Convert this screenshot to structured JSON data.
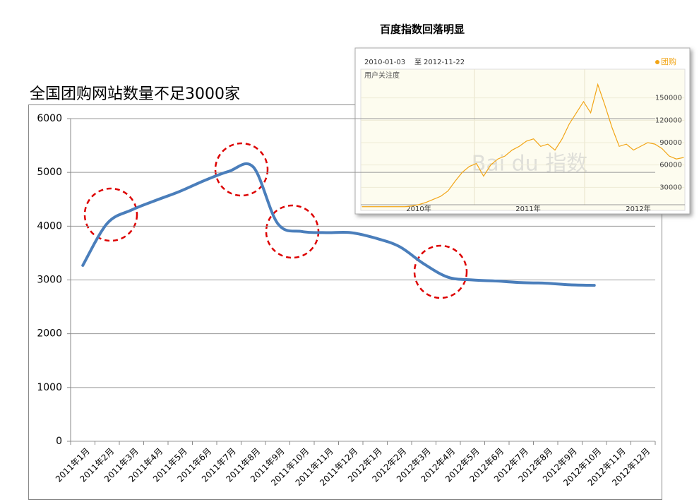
{
  "chart_data": [
    {
      "type": "line",
      "title": "全国团购网站数量不足3000家",
      "categories": [
        "2011年1月",
        "2011年2月",
        "2011年3月",
        "2011年4月",
        "2011年5月",
        "2011年6月",
        "2011年7月",
        "2011年8月",
        "2011年9月",
        "2011年10月",
        "2011年11月",
        "2011年12月",
        "2012年1月",
        "2012年2月",
        "2012年3月",
        "2012年4月",
        "2012年5月",
        "2012年6月",
        "2012年7月",
        "2012年8月",
        "2012年9月",
        "2012年10月",
        "2012年11月",
        "2012年12月"
      ],
      "series": [
        {
          "name": null,
          "color": "#4a7ebb",
          "values": [
            3270,
            4050,
            4300,
            4480,
            4650,
            4850,
            5020,
            5100,
            4050,
            3900,
            3880,
            3880,
            3780,
            3620,
            3300,
            3050,
            3000,
            2980,
            2950,
            2940,
            2910,
            2900,
            null,
            null
          ]
        }
      ],
      "ylim": [
        0,
        6000
      ],
      "yticks": [
        0,
        1000,
        2000,
        3000,
        4000,
        5000,
        6000
      ],
      "grid": true
    },
    {
      "type": "line",
      "title": "百度指数回落明显",
      "date_start": "2010-01-03",
      "date_sep": "至",
      "date_end": "2012-11-22",
      "ylabel": "用户关注度",
      "watermark": "Bai du 指数",
      "xtick_labels": [
        "2010年",
        "2011年",
        "2012年"
      ],
      "series": [
        {
          "name": "团购",
          "color": "#f2a516",
          "values": [
            4000,
            4000,
            4000,
            4000,
            4000,
            4000,
            4000,
            5000,
            7000,
            10000,
            14000,
            18000,
            25000,
            38000,
            50000,
            58000,
            62000,
            45000,
            60000,
            68000,
            72000,
            80000,
            85000,
            92000,
            95000,
            85000,
            88000,
            80000,
            95000,
            115000,
            130000,
            145000,
            130000,
            168000,
            140000,
            110000,
            85000,
            88000,
            80000,
            85000,
            90000,
            88000,
            82000,
            72000,
            68000,
            70000
          ]
        }
      ],
      "ylim": [
        0,
        180000
      ],
      "yticks": [
        30000,
        60000,
        90000,
        120000,
        150000
      ],
      "grid": true
    }
  ]
}
